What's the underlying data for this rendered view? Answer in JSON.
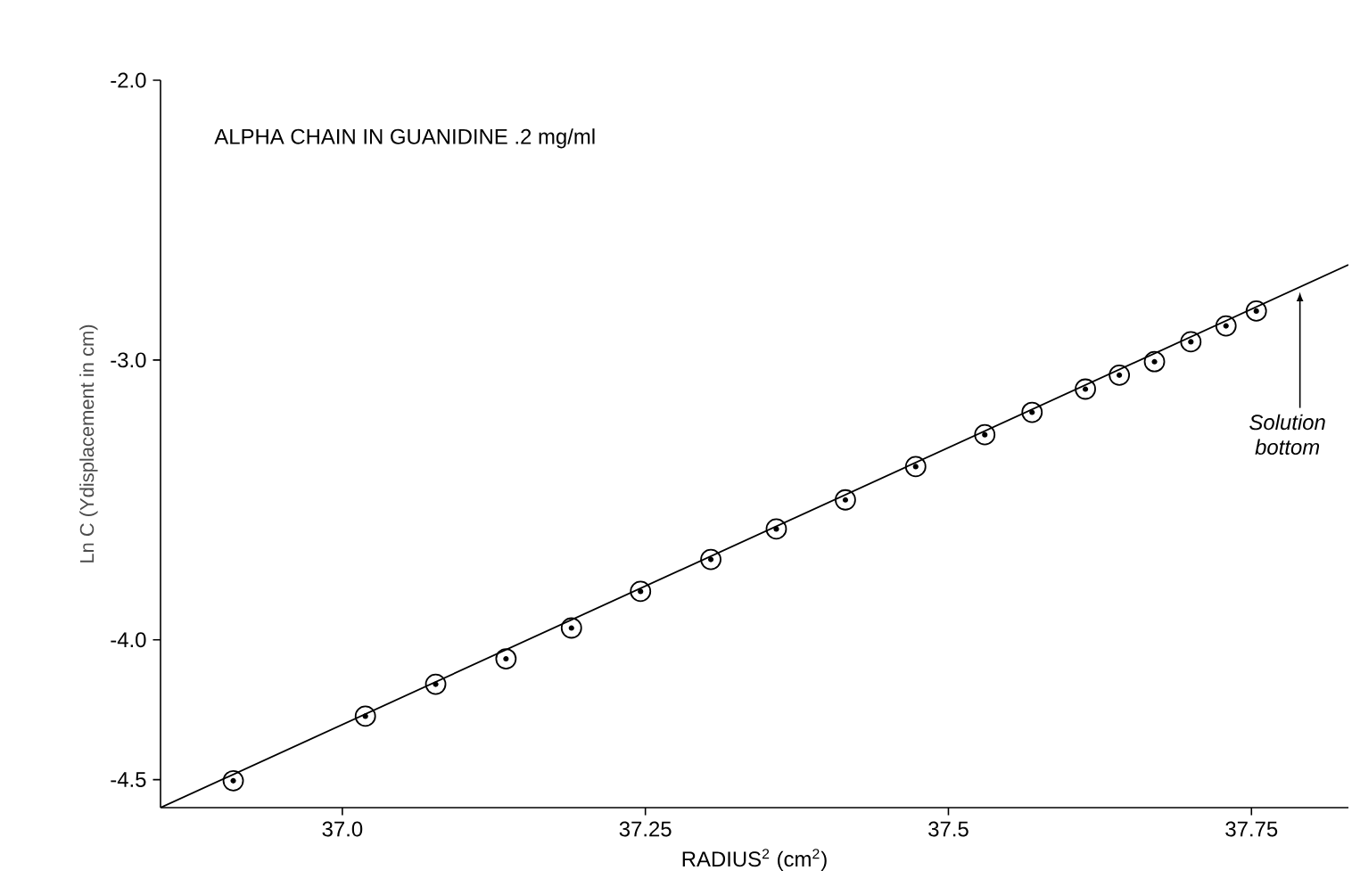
{
  "chart_data": {
    "type": "scatter",
    "title": "ALPHA CHAIN IN GUANIDINE .2 mg/ml",
    "xlabel": "RADIUS$^{2}$ (cm$^{2}$)",
    "ylabel": "Ln C (Ydisplacement in cm)",
    "xlim": [
      36.85,
      37.83
    ],
    "ylim": [
      -4.6,
      -2.0
    ],
    "xticks": [
      {
        "value": 37.0,
        "label": "37.0"
      },
      37.25,
      37.5,
      37.75
    ],
    "yticks": [
      {
        "value": -2.0,
        "label": "-2.0"
      },
      {
        "value": -3.0,
        "label": "-3.0"
      },
      {
        "value": -4.0,
        "label": "-4.0"
      },
      -4.5
    ],
    "grid": false,
    "series": [
      {
        "marker": "circle",
        "color": "#000000",
        "x": [
          36.91,
          37.019,
          37.077,
          37.135,
          37.189,
          37.246,
          37.304,
          37.358,
          37.415,
          37.473,
          37.53,
          37.569,
          37.613,
          37.641,
          37.67,
          37.7,
          37.729,
          37.754
        ],
        "values": [
          -4.504,
          -4.273,
          -4.159,
          -4.068,
          -3.958,
          -3.827,
          -3.713,
          -3.604,
          -3.5,
          -3.381,
          -3.267,
          -3.187,
          -3.104,
          -3.054,
          -3.006,
          -2.935,
          -2.878,
          -2.825
        ]
      },
      {
        "type": "line",
        "marker": "none",
        "line_style": "solid",
        "color": "#000000",
        "x": [
          36.85,
          37.83
        ],
        "values": [
          -4.6,
          -2.66
        ]
      }
    ],
    "annotations": [
      {
        "text": "Solution bottom",
        "x": 37.79,
        "y": -2.757
      }
    ]
  }
}
